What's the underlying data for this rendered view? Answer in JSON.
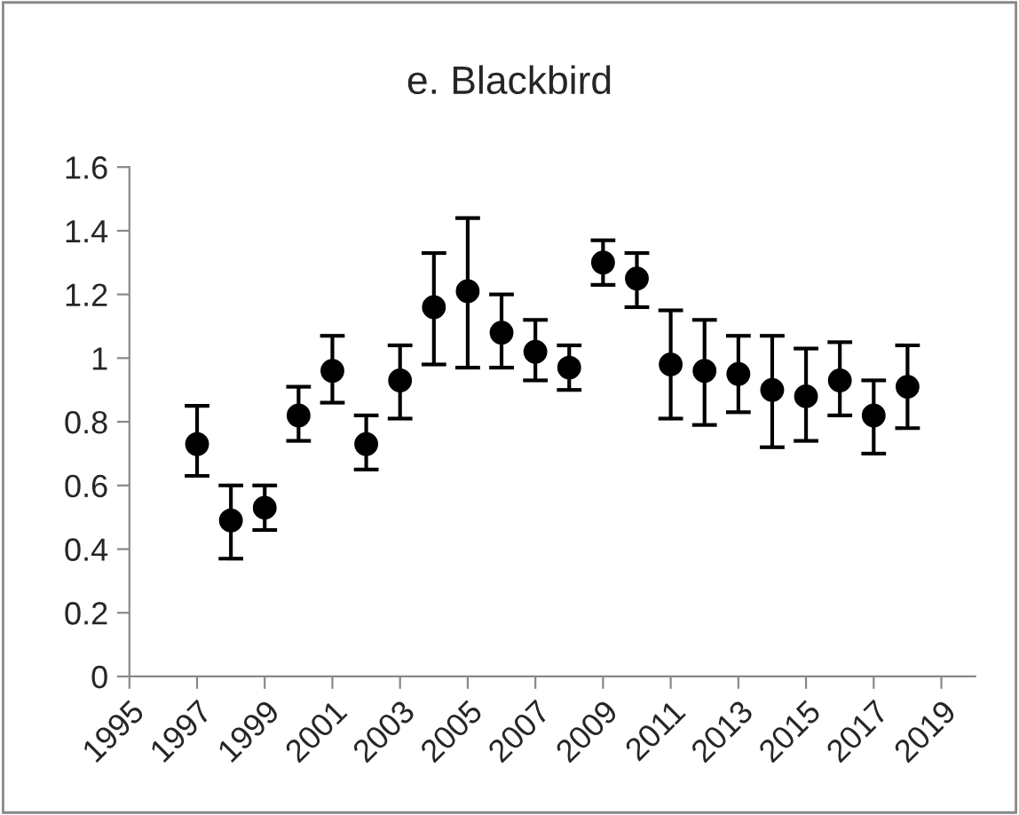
{
  "chart_data": {
    "type": "scatter",
    "title": "e. Blackbird",
    "x": [
      1997,
      1998,
      1999,
      2000,
      2001,
      2002,
      2003,
      2004,
      2005,
      2006,
      2007,
      2008,
      2009,
      2010,
      2011,
      2012,
      2013,
      2014,
      2015,
      2016,
      2017,
      2018
    ],
    "series": [
      {
        "color": "#000000",
        "values": [
          0.73,
          0.49,
          0.53,
          0.82,
          0.96,
          0.73,
          0.93,
          1.16,
          1.21,
          1.08,
          1.02,
          0.97,
          1.3,
          1.25,
          0.98,
          0.96,
          0.95,
          0.9,
          0.88,
          0.93,
          0.82,
          0.91
        ],
        "errors": [
          [
            0.63,
            0.85
          ],
          [
            0.37,
            0.6
          ],
          [
            0.46,
            0.6
          ],
          [
            0.74,
            0.91
          ],
          [
            0.86,
            1.07
          ],
          [
            0.65,
            0.82
          ],
          [
            0.81,
            1.04
          ],
          [
            0.98,
            1.33
          ],
          [
            0.97,
            1.44
          ],
          [
            0.97,
            1.2
          ],
          [
            0.93,
            1.12
          ],
          [
            0.9,
            1.04
          ],
          [
            1.23,
            1.37
          ],
          [
            1.16,
            1.33
          ],
          [
            0.81,
            1.15
          ],
          [
            0.79,
            1.12
          ],
          [
            0.83,
            1.07
          ],
          [
            0.72,
            1.07
          ],
          [
            0.74,
            1.03
          ],
          [
            0.82,
            1.05
          ],
          [
            0.7,
            0.93
          ],
          [
            0.78,
            1.04
          ]
        ]
      }
    ],
    "xlim": [
      1995,
      2020
    ],
    "xticks": [
      1995,
      1997,
      1999,
      2001,
      2003,
      2005,
      2007,
      2009,
      2011,
      2013,
      2015,
      2017,
      2019
    ],
    "ylim": [
      0,
      1.6
    ],
    "yticks": [
      0,
      {
        "value": 0.2,
        "label": "0.2"
      },
      {
        "value": 0.4,
        "label": "0.4"
      },
      {
        "value": 0.6,
        "label": "0.6"
      },
      {
        "value": 0.8,
        "label": "0.8"
      },
      1,
      {
        "value": 1.2,
        "label": "1.2"
      },
      {
        "value": 1.4,
        "label": "1.4"
      },
      {
        "value": 1.6,
        "label": "1.6"
      }
    ],
    "grid": false,
    "legend": false,
    "marker": "circle"
  }
}
